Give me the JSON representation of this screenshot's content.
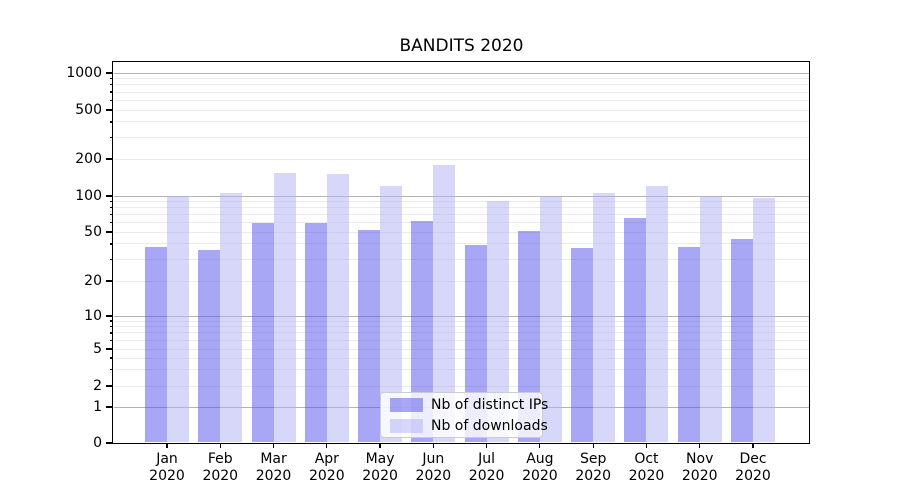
{
  "chart_data": {
    "type": "bar",
    "title": "BANDITS 2020",
    "year_label": "2020",
    "categories": [
      "Jan",
      "Feb",
      "Mar",
      "Apr",
      "May",
      "Jun",
      "Jul",
      "Aug",
      "Sep",
      "Oct",
      "Nov",
      "Dec"
    ],
    "series": [
      {
        "name": "Nb of distinct IPs",
        "color": "rgba(80,80,235,0.5)",
        "values": [
          38,
          36,
          60,
          59,
          52,
          62,
          39,
          51,
          37,
          66,
          38,
          44
        ]
      },
      {
        "name": "Nb of downloads",
        "color": "rgba(175,175,245,0.5)",
        "values": [
          100,
          105,
          155,
          150,
          120,
          180,
          90,
          100,
          105,
          120,
          100,
          96
        ]
      }
    ],
    "xlabel": "",
    "ylabel": "",
    "yscale": "symlog",
    "y_ticks": [
      0,
      1,
      2,
      5,
      10,
      20,
      50,
      100,
      200,
      500,
      1000
    ],
    "ylim": [
      0,
      1200
    ],
    "grid": {
      "major_color": "#b3b3b3",
      "minor_color": "#ebebeb"
    },
    "legend_position": "lower center",
    "background_color": "#ffffff",
    "text_color": "#000000"
  }
}
